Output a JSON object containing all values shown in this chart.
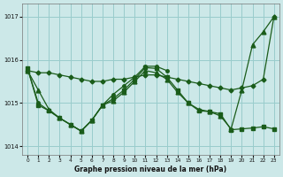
{
  "xlabel": "Graphe pression niveau de la mer (hPa)",
  "bg_color": "#cce8e8",
  "grid_color": "#99cccc",
  "line_color": "#1a5c1a",
  "xlim": [
    -0.5,
    23.5
  ],
  "ylim": [
    1013.8,
    1017.3
  ],
  "yticks": [
    1014,
    1015,
    1016,
    1017
  ],
  "xticks": [
    0,
    1,
    2,
    3,
    4,
    5,
    6,
    7,
    8,
    9,
    10,
    11,
    12,
    13,
    14,
    15,
    16,
    17,
    18,
    19,
    20,
    21,
    22,
    23
  ],
  "lines": [
    {
      "x": [
        0,
        1,
        2,
        3,
        4,
        5,
        6,
        7,
        8,
        9,
        10,
        11,
        12,
        13,
        14,
        15,
        16,
        17,
        18,
        19,
        20,
        21,
        22,
        23
      ],
      "y": [
        1015.75,
        1015.7,
        1015.7,
        1015.65,
        1015.6,
        1015.55,
        1015.5,
        1015.5,
        1015.55,
        1015.55,
        1015.6,
        1015.65,
        1015.65,
        1015.6,
        1015.55,
        1015.5,
        1015.45,
        1015.4,
        1015.35,
        1015.3,
        1015.35,
        1015.4,
        1015.55,
        1017.0
      ],
      "marker": "D",
      "markersize": 2.5
    },
    {
      "x": [
        0,
        1,
        2,
        3,
        4,
        5,
        6,
        7,
        8,
        9,
        10,
        11,
        12,
        13,
        14,
        15,
        16,
        17,
        18,
        19,
        20,
        21,
        22,
        23
      ],
      "y": [
        1015.75,
        1015.3,
        1014.85,
        1014.65,
        1014.5,
        1014.35,
        1014.6,
        1014.95,
        1015.05,
        1015.25,
        1015.5,
        1015.75,
        1015.7,
        1015.55,
        1015.25,
        1015.0,
        1014.85,
        1014.8,
        1014.7,
        1014.4,
        1015.3,
        1016.35,
        1016.65,
        1017.0
      ],
      "marker": "^",
      "markersize": 3.5
    },
    {
      "x": [
        0,
        1,
        2,
        3,
        4,
        5,
        6,
        7,
        8,
        9,
        10,
        11,
        12,
        13,
        14,
        15,
        16,
        17,
        18,
        19,
        20,
        21,
        22,
        23
      ],
      "y": [
        1015.8,
        1014.95,
        1014.82,
        1014.65,
        1014.5,
        1014.35,
        1014.6,
        1014.95,
        1015.1,
        1015.3,
        1015.55,
        1015.82,
        1015.8,
        1015.6,
        1015.3,
        1015.0,
        1014.82,
        1014.8,
        1014.75,
        1014.38,
        1014.4,
        1014.42,
        1014.45,
        1014.4
      ],
      "marker": "s",
      "markersize": 2.5
    },
    {
      "x": [
        0,
        1,
        2,
        3,
        4,
        5,
        6,
        7,
        8,
        9,
        10,
        11,
        12,
        13
      ],
      "y": [
        1015.8,
        1015.0,
        1014.82,
        1014.65,
        1014.5,
        1014.35,
        1014.6,
        1014.95,
        1015.2,
        1015.4,
        1015.6,
        1015.85,
        1015.85,
        1015.75
      ],
      "marker": "o",
      "markersize": 2.5
    }
  ]
}
